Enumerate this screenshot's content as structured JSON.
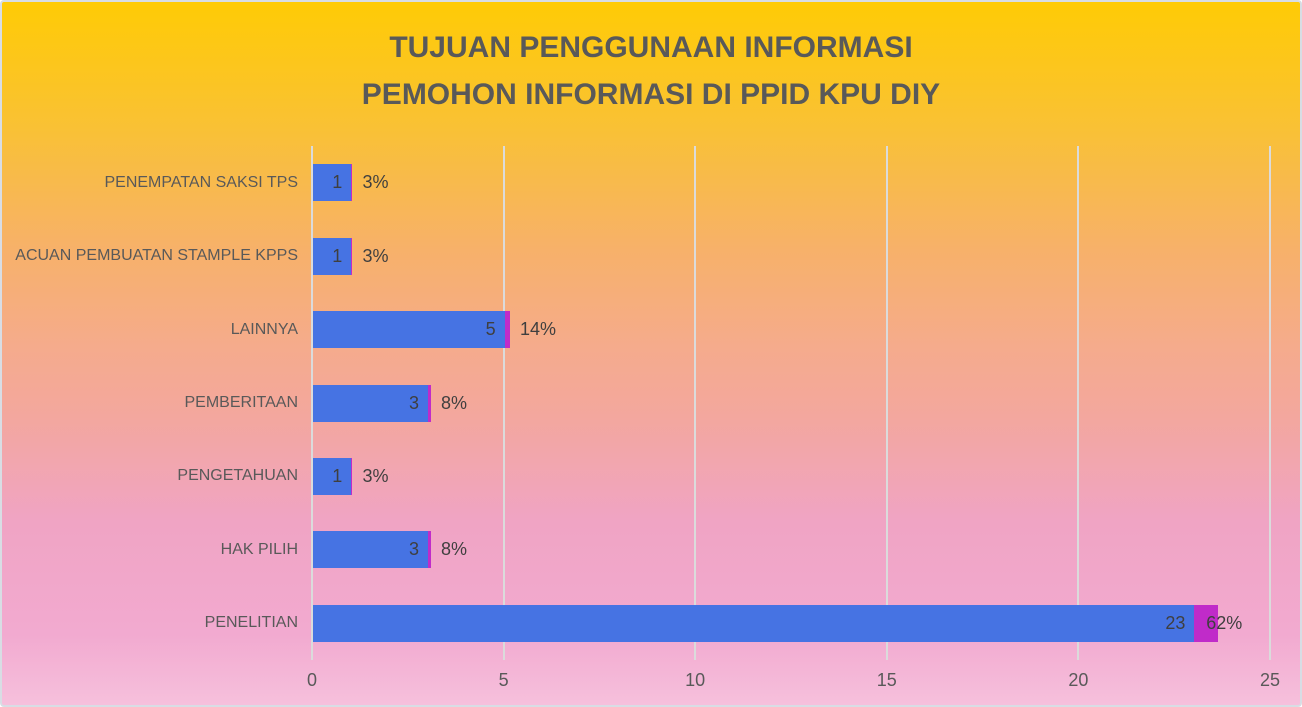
{
  "title": {
    "line1": "TUJUAN PENGGUNAAN INFORMASI",
    "line2": "PEMOHON INFORMASI DI PPID KPU DIY"
  },
  "chart_data": {
    "type": "bar",
    "orientation": "horizontal",
    "title": "TUJUAN PENGGUNAAN INFORMASI PEMOHON INFORMASI DI PPID KPU DIY",
    "categories_top_to_bottom": [
      "PENEMPATAN SAKSI TPS",
      "ACUAN PEMBUATAN STAMPLE KPPS",
      "LAINNYA",
      "PEMBERITAAN",
      "PENGETAHUAN",
      "HAK PILIH",
      "PENELITIAN"
    ],
    "series": [
      {
        "name": "count",
        "values": [
          1,
          1,
          5,
          3,
          1,
          3,
          23
        ],
        "labels": [
          "1",
          "1",
          "5",
          "3",
          "1",
          "3",
          "23"
        ]
      },
      {
        "name": "percent-share",
        "values": [
          0.03,
          0.03,
          0.14,
          0.08,
          0.03,
          0.08,
          0.62
        ],
        "labels": [
          "3%",
          "3%",
          "14%",
          "8%",
          "3%",
          "8%",
          "62%"
        ]
      }
    ],
    "xlim": [
      0,
      25
    ],
    "x_ticks": [
      "0",
      "5",
      "10",
      "15",
      "20",
      "25"
    ],
    "grid": "vertical-gridlines-on",
    "legend": "none"
  },
  "colors": {
    "bar_count": "#4673E3",
    "bar_percent": "#C02BC9",
    "title_text": "#595959",
    "axis_text": "#595959",
    "value_text": "#3F3F3F",
    "gridline": "#DBDBDB",
    "background_gradient_top": "#FFCB05",
    "background_gradient_middle": "#F4A99A",
    "background_gradient_bottom": "#F6C0DC"
  }
}
